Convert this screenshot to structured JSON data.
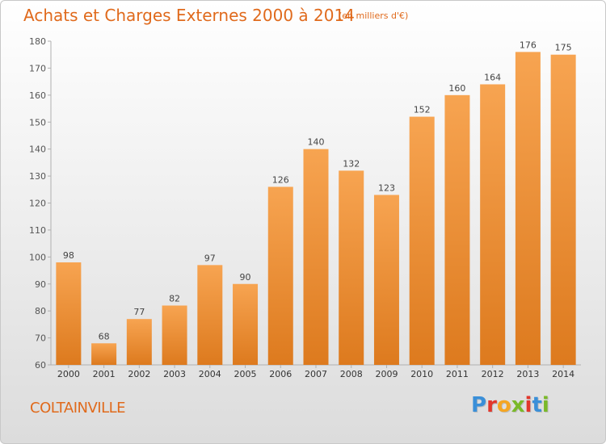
{
  "page": {
    "title": "Achats et Charges Externes 2000 à 2014",
    "subtitle": "(en milliers d'€)",
    "place": "COLTAINVILLE",
    "logo": {
      "letters": [
        "P",
        "r",
        "o",
        "x",
        "i",
        "t",
        "i"
      ],
      "colors": [
        "#3a8fd8",
        "#e2372c",
        "#f5a623",
        "#7ab929",
        "#e2372c",
        "#3a8fd8",
        "#7ab929"
      ]
    }
  },
  "colors": {
    "accent": "#e06a1c",
    "bar_light": "#f7a451",
    "bar_dark": "#dd7a1e"
  },
  "chart_data": {
    "type": "bar",
    "title": "Achats et Charges Externes 2000 à 2014",
    "subtitle": "(en milliers d'€)",
    "xlabel": "",
    "ylabel": "",
    "categories": [
      "2000",
      "2001",
      "2002",
      "2003",
      "2004",
      "2005",
      "2006",
      "2007",
      "2008",
      "2009",
      "2010",
      "2011",
      "2012",
      "2013",
      "2014"
    ],
    "values": [
      98,
      68,
      77,
      82,
      97,
      90,
      126,
      140,
      132,
      123,
      152,
      160,
      164,
      176,
      175
    ],
    "ylim": [
      60,
      180
    ],
    "yticks": [
      60,
      70,
      80,
      90,
      100,
      110,
      120,
      130,
      140,
      150,
      160,
      170,
      180
    ],
    "grid": false,
    "data_labels": true
  }
}
